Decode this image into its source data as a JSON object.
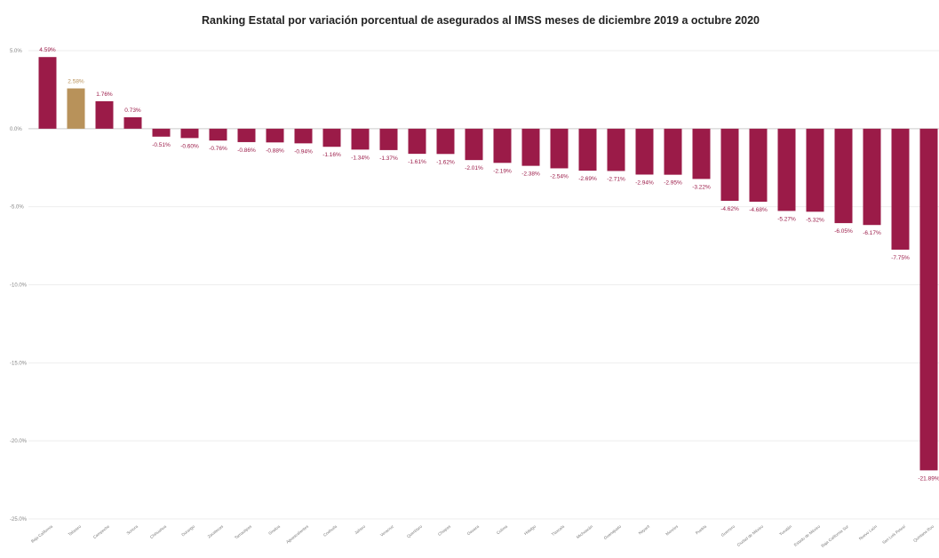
{
  "chart_data": {
    "type": "bar",
    "title": "Ranking Estatal por variación porcentual de asegurados al IMSS meses de diciembre 2019 a octubre 2020",
    "xlabel": "",
    "ylabel": "",
    "ylim": [
      -25,
      5
    ],
    "grid": true,
    "legend": "none",
    "y_ticks": [
      5,
      0,
      -5,
      -10,
      -15,
      -20,
      -25
    ],
    "y_tick_labels": [
      "5.0%",
      "0.0%",
      "-5.0%",
      "-10.0%",
      "-15.0%",
      "-20.0%",
      "-25.0%"
    ],
    "categories": [
      "Baja California",
      "Tabasco",
      "Campeche",
      "Sonora",
      "Chihuahua",
      "Durango",
      "Zacatecas",
      "Tamaulipas",
      "Sinaloa",
      "Aguascalientes",
      "Coahuila",
      "Jalisco",
      "Veracruz",
      "Querétaro",
      "Chiapas",
      "Oaxaca",
      "Colima",
      "Hidalgo",
      "Tlaxcala",
      "Michoacán",
      "Guanajuato",
      "Nayarit",
      "Morelos",
      "Puebla",
      "Guerrero",
      "Ciudad de México",
      "Yucatán",
      "Estado de México",
      "Baja California Sur",
      "Nuevo León",
      "San Luis Potosí",
      "Quintana Roo"
    ],
    "values": [
      4.59,
      2.58,
      1.76,
      0.73,
      -0.51,
      -0.6,
      -0.76,
      -0.86,
      -0.88,
      -0.94,
      -1.16,
      -1.34,
      -1.37,
      -1.61,
      -1.62,
      -2.01,
      -2.19,
      -2.38,
      -2.54,
      -2.69,
      -2.71,
      -2.94,
      -2.95,
      -3.22,
      -4.62,
      -4.68,
      -5.27,
      -5.32,
      -6.05,
      -6.17,
      -7.75,
      -21.89
    ],
    "value_labels": [
      "4.59%",
      "2.58%",
      "1.76%",
      "0.73%",
      "-0.51%",
      "-0.60%",
      "-0.76%",
      "-0.86%",
      "-0.88%",
      "-0.94%",
      "-1.16%",
      "-1.34%",
      "-1.37%",
      "-1.61%",
      "-1.62%",
      "-2.01%",
      "-2.19%",
      "-2.38%",
      "-2.54%",
      "-2.69%",
      "-2.71%",
      "-2.94%",
      "-2.95%",
      "-3.22%",
      "-4.62%",
      "-4.68%",
      "-5.27%",
      "-5.32%",
      "-6.05%",
      "-6.17%",
      "-7.75%",
      "-21.89%"
    ],
    "colors": {
      "default": "#9b1b48",
      "highlight": "#b8925a",
      "label_default": "#9b1b48",
      "label_highlight": "#b8925a",
      "grid": "#eeeeee",
      "zero_line": "#cccccc"
    },
    "highlight_index": 1
  }
}
